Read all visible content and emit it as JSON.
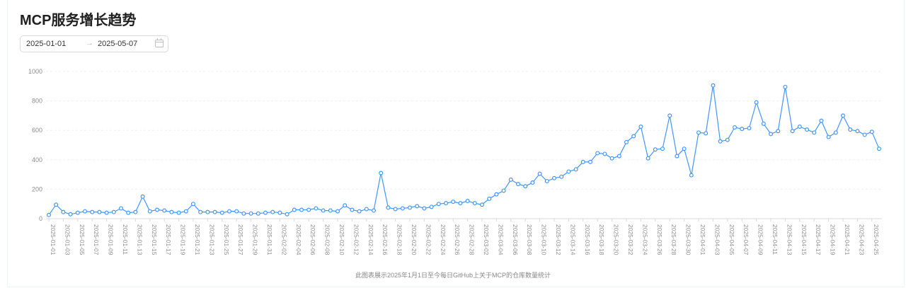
{
  "header": {
    "title": "MCP服务增长趋势"
  },
  "date_range": {
    "start": "2025-01-01",
    "arrow": "→",
    "end": "2025-05-07",
    "icon": "calendar-icon"
  },
  "caption": "此图表展示2025年1月1日至今每日GitHub上关于MCP的仓库数量统计",
  "colors": {
    "line": "#4096ff",
    "point_fill": "#ffffff",
    "grid": "#f0f0f0",
    "axis": "#d9d9d9",
    "tick_text": "#8c8c8c"
  },
  "chart_data": {
    "type": "line",
    "title": "MCP服务增长趋势",
    "xlabel": "",
    "ylabel": "",
    "ylim": [
      0,
      1000
    ],
    "yticks": [
      0,
      200,
      400,
      600,
      800,
      1000
    ],
    "grid": true,
    "x_ticks": [
      "2025-01-01",
      "2025-01-03",
      "2025-01-05",
      "2025-01-07",
      "2025-01-09",
      "2025-01-11",
      "2025-01-13",
      "2025-01-15",
      "2025-01-17",
      "2025-01-19",
      "2025-01-21",
      "2025-01-23",
      "2025-01-25",
      "2025-01-27",
      "2025-01-29",
      "2025-01-31",
      "2025-02-02",
      "2025-02-04",
      "2025-02-06",
      "2025-02-08",
      "2025-02-10",
      "2025-02-12",
      "2025-02-14",
      "2025-02-16",
      "2025-02-18",
      "2025-02-20",
      "2025-02-22",
      "2025-02-24",
      "2025-02-26",
      "2025-02-28",
      "2025-03-02",
      "2025-03-04",
      "2025-03-06",
      "2025-03-08",
      "2025-03-10",
      "2025-03-12",
      "2025-03-14",
      "2025-03-16",
      "2025-03-18",
      "2025-03-20",
      "2025-03-22",
      "2025-03-24",
      "2025-03-26",
      "2025-03-28",
      "2025-03-30",
      "2025-04-01",
      "2025-04-03",
      "2025-04-05",
      "2025-04-07",
      "2025-04-09",
      "2025-04-11",
      "2025-04-13",
      "2025-04-15",
      "2025-04-17",
      "2025-04-19",
      "2025-04-21",
      "2025-04-23",
      "2025-04-25"
    ],
    "values": [
      25,
      95,
      45,
      30,
      40,
      50,
      45,
      45,
      40,
      45,
      70,
      40,
      45,
      150,
      50,
      60,
      55,
      45,
      40,
      50,
      100,
      45,
      45,
      45,
      40,
      50,
      50,
      35,
      35,
      35,
      40,
      45,
      40,
      30,
      60,
      60,
      60,
      70,
      55,
      55,
      50,
      90,
      60,
      50,
      65,
      55,
      310,
      75,
      65,
      70,
      75,
      85,
      70,
      80,
      100,
      105,
      115,
      105,
      120,
      105,
      95,
      135,
      165,
      190,
      265,
      235,
      220,
      245,
      305,
      255,
      275,
      285,
      320,
      335,
      385,
      385,
      445,
      440,
      410,
      425,
      520,
      560,
      625,
      410,
      470,
      475,
      700,
      425,
      475,
      295,
      585,
      580,
      905,
      525,
      535,
      620,
      610,
      615,
      790,
      645,
      575,
      595,
      895,
      595,
      625,
      605,
      585,
      665,
      555,
      585,
      700,
      605,
      595,
      570,
      590,
      475
    ]
  }
}
